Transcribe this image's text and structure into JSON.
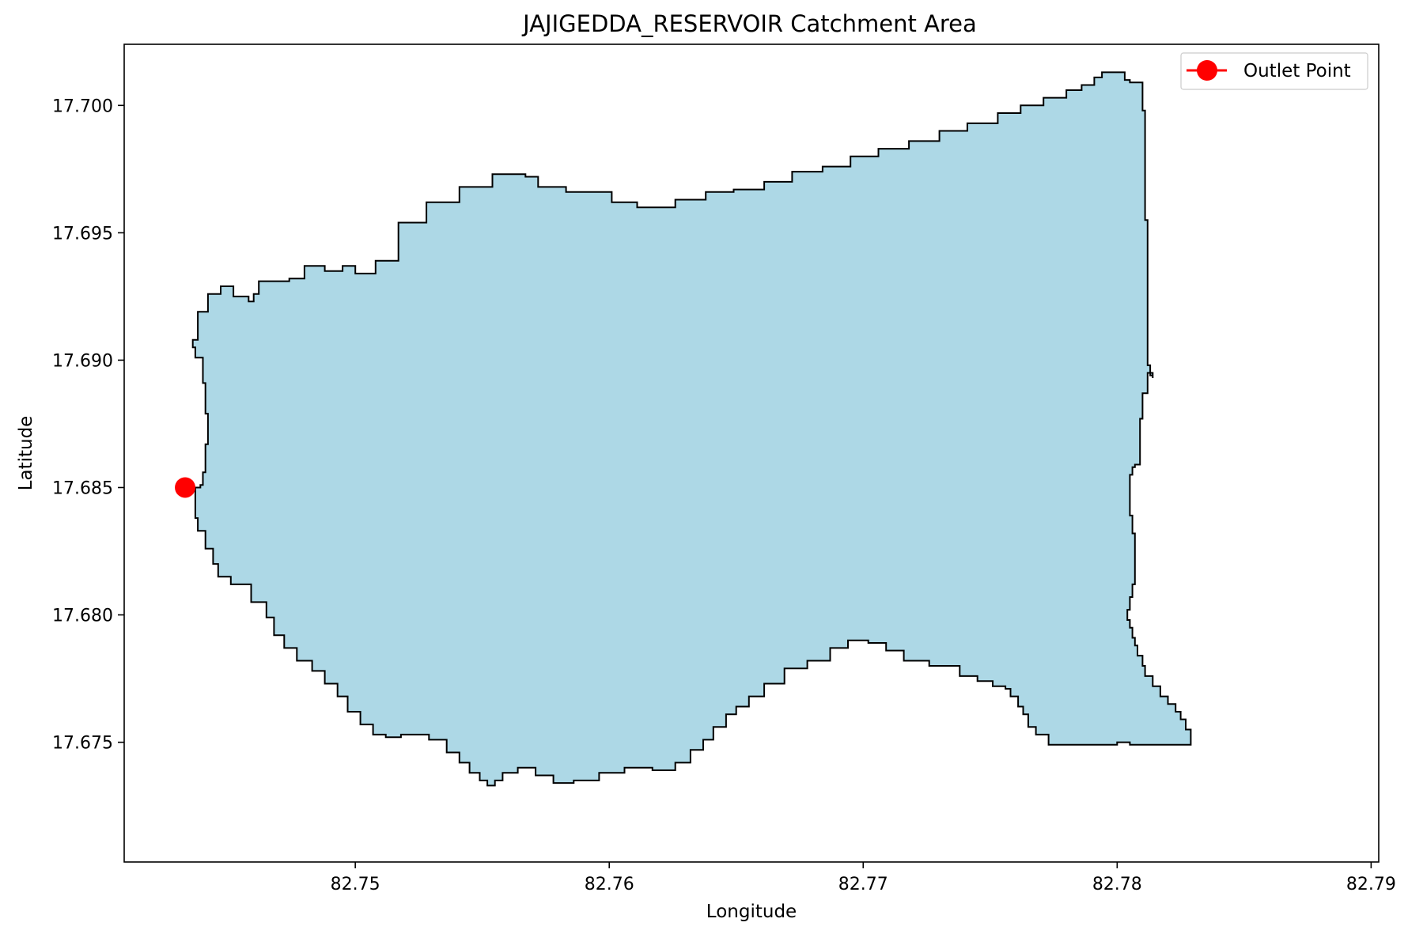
{
  "chart_data": {
    "type": "map",
    "title": "JAJIGEDDA_RESERVOIR Catchment Area",
    "xlabel": "Longitude",
    "ylabel": "Latitude",
    "xlim": [
      82.7409,
      82.7903
    ],
    "ylim": [
      17.6703,
      17.7024
    ],
    "xticks": [
      82.75,
      82.76,
      82.77,
      82.78,
      82.79
    ],
    "xtick_labels": [
      "82.75",
      "82.76",
      "82.77",
      "82.78",
      "82.79"
    ],
    "yticks": [
      17.675,
      17.68,
      17.685,
      17.69,
      17.695,
      17.7
    ],
    "ytick_labels": [
      "17.675",
      "17.680",
      "17.685",
      "17.690",
      "17.695",
      "17.700"
    ],
    "grid": false,
    "catchment": {
      "fill_color": "#add8e6",
      "edge_color": "#000000",
      "boundary": [
        [
          82.7437,
          17.685
        ],
        [
          82.7439,
          17.6851
        ],
        [
          82.744,
          17.6856
        ],
        [
          82.7441,
          17.6867
        ],
        [
          82.7442,
          17.6879
        ],
        [
          82.7441,
          17.6891
        ],
        [
          82.744,
          17.6901
        ],
        [
          82.7437,
          17.6905
        ],
        [
          82.7436,
          17.6908
        ],
        [
          82.7438,
          17.6919
        ],
        [
          82.7442,
          17.6926
        ],
        [
          82.7447,
          17.6929
        ],
        [
          82.7452,
          17.6925
        ],
        [
          82.7458,
          17.6923
        ],
        [
          82.746,
          17.6926
        ],
        [
          82.7462,
          17.6931
        ],
        [
          82.7474,
          17.6932
        ],
        [
          82.748,
          17.6937
        ],
        [
          82.7488,
          17.6935
        ],
        [
          82.7495,
          17.6937
        ],
        [
          82.75,
          17.6934
        ],
        [
          82.7508,
          17.6939
        ],
        [
          82.7517,
          17.6954
        ],
        [
          82.7528,
          17.6962
        ],
        [
          82.7541,
          17.6968
        ],
        [
          82.7554,
          17.6973
        ],
        [
          82.7567,
          17.6972
        ],
        [
          82.7572,
          17.6968
        ],
        [
          82.7583,
          17.6966
        ],
        [
          82.7592,
          17.6966
        ],
        [
          82.7601,
          17.6962
        ],
        [
          82.7611,
          17.696
        ],
        [
          82.7626,
          17.6963
        ],
        [
          82.7638,
          17.6966
        ],
        [
          82.7649,
          17.6967
        ],
        [
          82.7661,
          17.697
        ],
        [
          82.7672,
          17.6974
        ],
        [
          82.7684,
          17.6976
        ],
        [
          82.7695,
          17.698
        ],
        [
          82.7706,
          17.6983
        ],
        [
          82.7718,
          17.6986
        ],
        [
          82.773,
          17.699
        ],
        [
          82.7741,
          17.6993
        ],
        [
          82.7753,
          17.6997
        ],
        [
          82.7762,
          17.7
        ],
        [
          82.7771,
          17.7003
        ],
        [
          82.778,
          17.7006
        ],
        [
          82.7786,
          17.7008
        ],
        [
          82.7791,
          17.7011
        ],
        [
          82.7794,
          17.7013
        ],
        [
          82.7797,
          17.7013
        ],
        [
          82.7803,
          17.701
        ],
        [
          82.7805,
          17.7009
        ],
        [
          82.781,
          17.6998
        ],
        [
          82.7811,
          17.6992
        ],
        [
          82.7811,
          17.6986
        ],
        [
          82.7811,
          17.698
        ],
        [
          82.7811,
          17.6974
        ],
        [
          82.7811,
          17.6963
        ],
        [
          82.7811,
          17.6955
        ],
        [
          82.7812,
          17.6948
        ],
        [
          82.7812,
          17.6939
        ],
        [
          82.7812,
          17.6933
        ],
        [
          82.7812,
          17.6921
        ],
        [
          82.7812,
          17.6913
        ],
        [
          82.7812,
          17.6904
        ],
        [
          82.7812,
          17.6898
        ],
        [
          82.7813,
          17.6894
        ],
        [
          82.7814,
          17.6893
        ],
        [
          82.7814,
          17.6895
        ],
        [
          82.7812,
          17.6887
        ],
        [
          82.781,
          17.6877
        ],
        [
          82.7809,
          17.6866
        ],
        [
          82.7809,
          17.6859
        ],
        [
          82.7807,
          17.6858
        ],
        [
          82.7806,
          17.6855
        ],
        [
          82.7805,
          17.6847
        ],
        [
          82.7805,
          17.6839
        ],
        [
          82.7806,
          17.6832
        ],
        [
          82.7807,
          17.6826
        ],
        [
          82.7807,
          17.6819
        ],
        [
          82.7807,
          17.6812
        ],
        [
          82.7806,
          17.6807
        ],
        [
          82.7805,
          17.6802
        ],
        [
          82.7804,
          17.6798
        ],
        [
          82.7805,
          17.6795
        ],
        [
          82.7806,
          17.6791
        ],
        [
          82.7807,
          17.6788
        ],
        [
          82.7808,
          17.6784
        ],
        [
          82.781,
          17.678
        ],
        [
          82.7811,
          17.6776
        ],
        [
          82.7814,
          17.6772
        ],
        [
          82.7817,
          17.6768
        ],
        [
          82.782,
          17.6765
        ],
        [
          82.7823,
          17.6762
        ],
        [
          82.7825,
          17.6759
        ],
        [
          82.7827,
          17.6755
        ],
        [
          82.7829,
          17.6751
        ],
        [
          82.7829,
          17.6749
        ],
        [
          82.781,
          17.6749
        ],
        [
          82.7805,
          17.675
        ],
        [
          82.78,
          17.6749
        ],
        [
          82.7781,
          17.6749
        ],
        [
          82.7773,
          17.6753
        ],
        [
          82.7768,
          17.6756
        ],
        [
          82.7765,
          17.6761
        ],
        [
          82.7763,
          17.6764
        ],
        [
          82.7761,
          17.6768
        ],
        [
          82.7758,
          17.6771
        ],
        [
          82.7756,
          17.6772
        ],
        [
          82.7751,
          17.6774
        ],
        [
          82.7745,
          17.6776
        ],
        [
          82.7738,
          17.678
        ],
        [
          82.7726,
          17.6782
        ],
        [
          82.7716,
          17.6786
        ],
        [
          82.7709,
          17.6789
        ],
        [
          82.7702,
          17.679
        ],
        [
          82.7694,
          17.6787
        ],
        [
          82.7687,
          17.6782
        ],
        [
          82.7678,
          17.6779
        ],
        [
          82.7669,
          17.6773
        ],
        [
          82.7661,
          17.6768
        ],
        [
          82.7655,
          17.6764
        ],
        [
          82.765,
          17.6761
        ],
        [
          82.7646,
          17.6756
        ],
        [
          82.7641,
          17.6751
        ],
        [
          82.7637,
          17.6747
        ],
        [
          82.7632,
          17.6742
        ],
        [
          82.7626,
          17.6739
        ],
        [
          82.7617,
          17.674
        ],
        [
          82.7606,
          17.6738
        ],
        [
          82.7596,
          17.6735
        ],
        [
          82.7586,
          17.6734
        ],
        [
          82.7578,
          17.6737
        ],
        [
          82.7571,
          17.674
        ],
        [
          82.7564,
          17.6738
        ],
        [
          82.7558,
          17.6735
        ],
        [
          82.7555,
          17.6733
        ],
        [
          82.7552,
          17.6735
        ],
        [
          82.7549,
          17.6738
        ],
        [
          82.7545,
          17.6742
        ],
        [
          82.7541,
          17.6746
        ],
        [
          82.7536,
          17.6751
        ],
        [
          82.7529,
          17.6753
        ],
        [
          82.7518,
          17.6752
        ],
        [
          82.7512,
          17.6753
        ],
        [
          82.7507,
          17.6757
        ],
        [
          82.7502,
          17.6762
        ],
        [
          82.7497,
          17.6768
        ],
        [
          82.7493,
          17.6773
        ],
        [
          82.7488,
          17.6778
        ],
        [
          82.7483,
          17.6782
        ],
        [
          82.7477,
          17.6787
        ],
        [
          82.7472,
          17.6792
        ],
        [
          82.7468,
          17.6799
        ],
        [
          82.7465,
          17.6805
        ],
        [
          82.7459,
          17.6812
        ],
        [
          82.7451,
          17.6815
        ],
        [
          82.7446,
          17.682
        ],
        [
          82.7444,
          17.6826
        ],
        [
          82.7441,
          17.6833
        ],
        [
          82.7438,
          17.6838
        ],
        [
          82.7437,
          17.6845
        ]
      ]
    },
    "outlet_point": {
      "lon": 82.7433,
      "lat": 17.685,
      "color": "#ff0000"
    },
    "legend": {
      "placement": "top-right",
      "entries": [
        "Outlet Point"
      ]
    }
  }
}
